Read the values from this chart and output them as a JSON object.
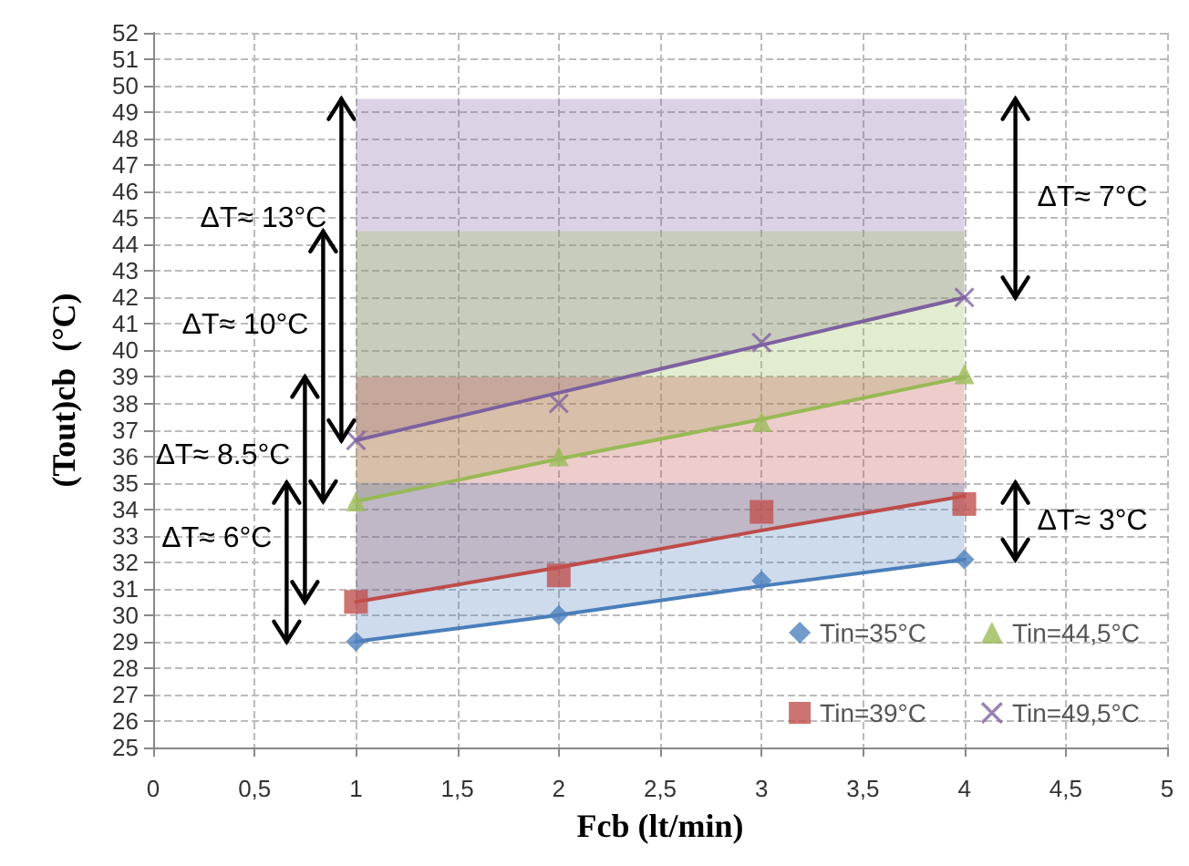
{
  "chart_data": {
    "type": "scatter",
    "xlabel": "Fcb (lt/min)",
    "ylabel": "(Tout)cb  (°C)",
    "xlim": [
      0,
      5
    ],
    "xticks": [
      0,
      {
        "value": 0.5,
        "label": "0,5"
      },
      1,
      {
        "value": 1.5,
        "label": "1,5"
      },
      2,
      {
        "value": 2.5,
        "label": "2,5"
      },
      3,
      {
        "value": 3.5,
        "label": "3,5"
      },
      4,
      {
        "value": 4.5,
        "label": "4,5"
      },
      5
    ],
    "ylim": [
      25,
      52
    ],
    "yticks": [
      25,
      26,
      27,
      28,
      29,
      30,
      31,
      32,
      33,
      34,
      35,
      36,
      37,
      38,
      39,
      40,
      41,
      42,
      43,
      44,
      45,
      46,
      47,
      48,
      49,
      50,
      51,
      52
    ],
    "grid": true,
    "legend": "bottom right",
    "x": [
      1,
      2,
      3,
      4
    ],
    "series": [
      {
        "type": "line",
        "color": "#7d60a0",
        "marker": "none",
        "values": [
          36.6,
          38.4,
          40.2,
          42.0
        ],
        "lower": [
          36.6,
          38.4,
          40.2,
          42.0
        ],
        "upper": [
          49.5,
          49.5,
          49.5,
          49.5
        ]
      },
      {
        "type": "line",
        "color": "#98b954",
        "marker": "none",
        "values": [
          34.3,
          35.9,
          37.4,
          39.0
        ],
        "lower": [
          34.3,
          35.9,
          37.4,
          39.0
        ],
        "upper": [
          44.5,
          44.5,
          44.5,
          44.5
        ]
      },
      {
        "type": "line",
        "color": "#be4b48",
        "marker": "none",
        "values": [
          30.5,
          31.8,
          33.2,
          34.5
        ],
        "lower": [
          30.5,
          31.8,
          33.2,
          34.5
        ],
        "upper": [
          39,
          39,
          39,
          39
        ]
      },
      {
        "type": "line",
        "color": "#4a7ebb",
        "marker": "none",
        "values": [
          29,
          30.0,
          31.1,
          32.1
        ],
        "lower": [
          29,
          30.0,
          31.1,
          32.1
        ],
        "upper": [
          35,
          35,
          35,
          35
        ]
      },
      {
        "name": "Tin=35°C",
        "color": "#4f81bd",
        "marker": "diamond",
        "values": [
          29,
          30,
          31.3,
          32.1
        ]
      },
      {
        "name": "Tin=39°C",
        "color": "#c0504d",
        "marker": "square",
        "values": [
          30.5,
          31.5,
          33.9,
          34.2
        ]
      },
      {
        "name": "Tin=44,5°C",
        "color": "#9bbb59",
        "marker": "triangle",
        "values": [
          34.3,
          36.0,
          37.3,
          39.1
        ]
      },
      {
        "name": "Tin=49,5°C",
        "color": "#8064a2",
        "marker": "cross",
        "values": [
          36.6,
          38.0,
          40.3,
          42.0
        ]
      }
    ],
    "annotations": [
      "ΔT≈ 13°C",
      "ΔT≈ 10°C",
      "ΔT≈ 8.5°C",
      "ΔT≈ 6°C",
      "ΔT≈ 7°C",
      "ΔT≈ 3°C"
    ]
  }
}
